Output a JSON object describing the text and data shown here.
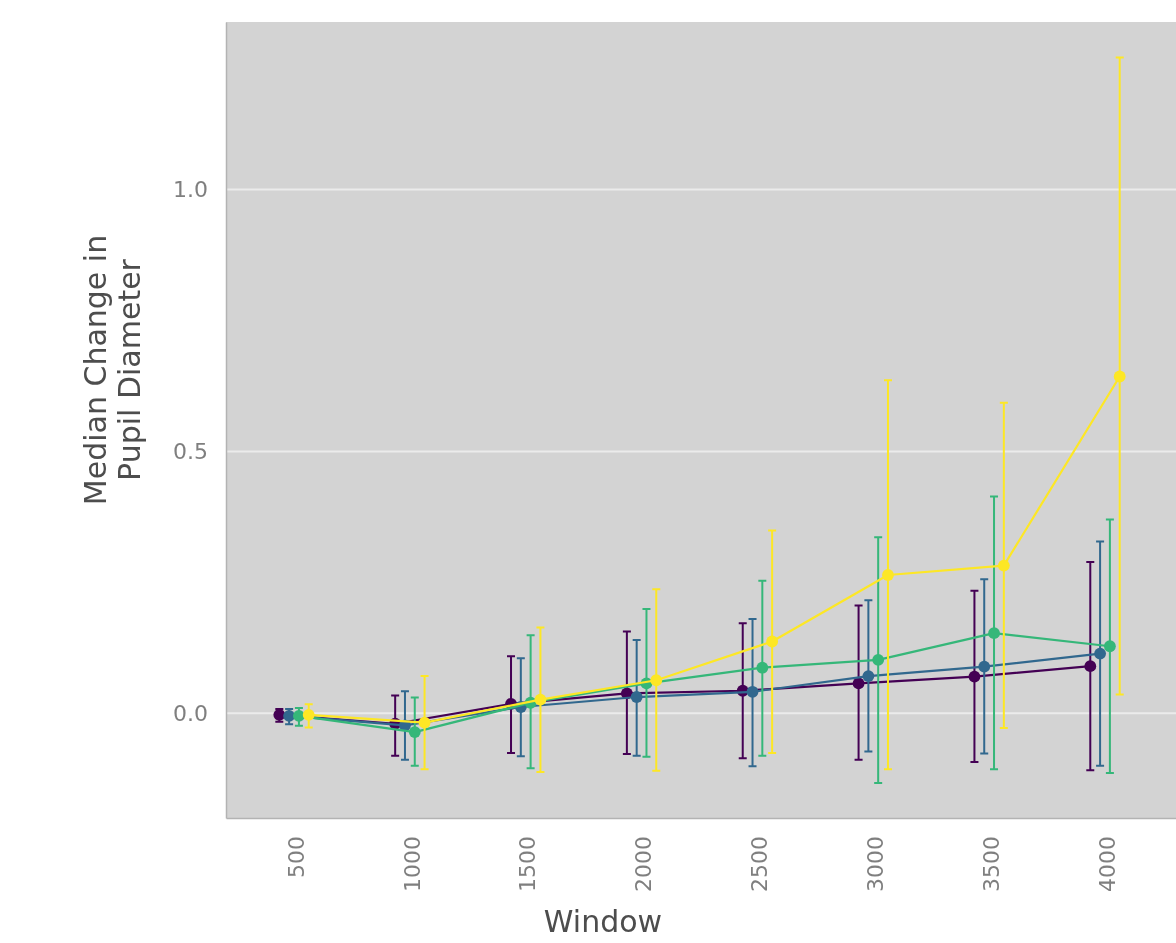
{
  "chart_data": {
    "type": "line",
    "xlabel": "Window",
    "ylabel": "Median Change in\nPupil Diameter",
    "categories": [
      "500",
      "1000",
      "1500",
      "2000",
      "2500",
      "3000",
      "3500",
      "4000"
    ],
    "ylim": [
      -0.2,
      1.32
    ],
    "yticks": [
      {
        "value": 0,
        "label": "0.0"
      },
      {
        "value": 0.5,
        "label": "0.5"
      },
      {
        "value": 1,
        "label": "1.0"
      }
    ],
    "grid": "y",
    "legend": false,
    "marker": "circle",
    "line_style": "solid",
    "series": [
      {
        "color": "#440154",
        "values": [
          -0.003,
          -0.02,
          0.018,
          0.038,
          0.043,
          0.057,
          0.07,
          0.09
        ],
        "errors": [
          [
            -0.016,
            0.008
          ],
          [
            -0.081,
            0.034
          ],
          [
            -0.076,
            0.109
          ],
          [
            -0.078,
            0.156
          ],
          [
            -0.086,
            0.172
          ],
          [
            -0.089,
            0.206
          ],
          [
            -0.093,
            0.234
          ],
          [
            -0.109,
            0.289
          ]
        ]
      },
      {
        "color": "#31688e",
        "values": [
          -0.005,
          -0.023,
          0.012,
          0.031,
          0.041,
          0.071,
          0.089,
          0.114
        ],
        "errors": [
          [
            -0.021,
            0.008
          ],
          [
            -0.089,
            0.042
          ],
          [
            -0.082,
            0.105
          ],
          [
            -0.081,
            0.14
          ],
          [
            -0.101,
            0.18
          ],
          [
            -0.073,
            0.216
          ],
          [
            -0.077,
            0.256
          ],
          [
            -0.1,
            0.328
          ]
        ]
      },
      {
        "color": "#35b779",
        "values": [
          -0.005,
          -0.036,
          0.02,
          0.057,
          0.087,
          0.102,
          0.153,
          0.128
        ],
        "errors": [
          [
            -0.024,
            0.01
          ],
          [
            -0.1,
            0.03
          ],
          [
            -0.105,
            0.149
          ],
          [
            -0.083,
            0.199
          ],
          [
            -0.081,
            0.253
          ],
          [
            -0.133,
            0.336
          ],
          [
            -0.107,
            0.414
          ],
          [
            -0.114,
            0.37
          ]
        ]
      },
      {
        "color": "#fde725",
        "values": [
          -0.003,
          -0.018,
          0.026,
          0.063,
          0.137,
          0.264,
          0.282,
          0.643
        ],
        "errors": [
          [
            -0.027,
            0.017
          ],
          [
            -0.107,
            0.071
          ],
          [
            -0.112,
            0.164
          ],
          [
            -0.11,
            0.237
          ],
          [
            -0.076,
            0.349
          ],
          [
            -0.107,
            0.636
          ],
          [
            -0.028,
            0.593
          ],
          [
            0.036,
            1.252
          ]
        ]
      }
    ]
  }
}
